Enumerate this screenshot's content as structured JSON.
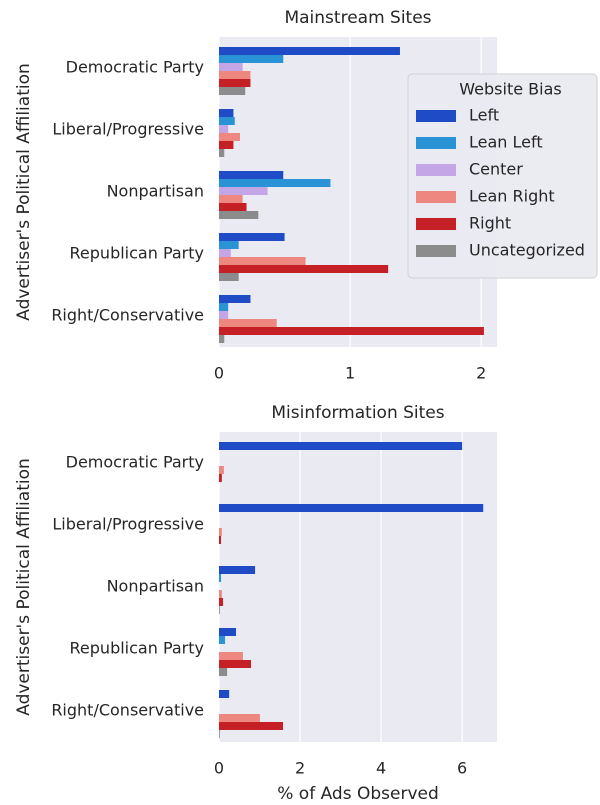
{
  "chart_data": [
    {
      "type": "hbar",
      "title": "Mainstream Sites",
      "ylabel": "Advertiser's Political Affiliation",
      "categories": [
        "Democratic Party",
        "Liberal/Progressive",
        "Nonpartisan",
        "Republican Party",
        "Right/Conservative"
      ],
      "series": [
        {
          "name": "Left",
          "color": "#1f4cc6",
          "values": [
            1.38,
            0.11,
            0.49,
            0.5,
            0.24
          ]
        },
        {
          "name": "Lean Left",
          "color": "#2a93d6",
          "values": [
            0.49,
            0.12,
            0.85,
            0.15,
            0.07
          ]
        },
        {
          "name": "Center",
          "color": "#c4a5e6",
          "values": [
            0.18,
            0.07,
            0.37,
            0.09,
            0.07
          ]
        },
        {
          "name": "Lean Right",
          "color": "#ee8780",
          "values": [
            0.24,
            0.16,
            0.18,
            0.66,
            0.44
          ]
        },
        {
          "name": "Right",
          "color": "#c52026",
          "values": [
            0.24,
            0.11,
            0.21,
            1.29,
            2.02
          ]
        },
        {
          "name": "Uncategorized",
          "color": "#8c8c8c",
          "values": [
            0.2,
            0.04,
            0.3,
            0.15,
            0.04
          ]
        }
      ],
      "xlim": [
        0,
        2.12
      ],
      "xticks": [
        0,
        1,
        2
      ],
      "grid": true,
      "legend": "center right",
      "legend_title": "Website Bias"
    },
    {
      "type": "hbar",
      "title": "Misinformation Sites",
      "ylabel": "Advertiser's Political Affiliation",
      "xlabel": "% of Ads Observed",
      "categories": [
        "Democratic Party",
        "Liberal/Progressive",
        "Nonpartisan",
        "Republican Party",
        "Right/Conservative"
      ],
      "series": [
        {
          "color": "#1f4cc6",
          "values": [
            6.0,
            6.52,
            0.89,
            0.42,
            0.25
          ]
        },
        {
          "color": "#2a93d6",
          "values": [
            0,
            0,
            0.05,
            0.15,
            0
          ]
        },
        {
          "color": "#c4a5e6",
          "values": [
            0,
            0,
            0,
            0,
            0
          ]
        },
        {
          "color": "#ee8780",
          "values": [
            0.12,
            0.07,
            0.07,
            0.59,
            1.01
          ]
        },
        {
          "color": "#c52026",
          "values": [
            0.07,
            0.05,
            0.1,
            0.79,
            1.58
          ]
        },
        {
          "color": "#8c8c8c",
          "values": [
            0,
            0,
            0.02,
            0.2,
            0.02
          ]
        }
      ],
      "xlim": [
        0,
        6.86
      ],
      "xticks": [
        0,
        2,
        4,
        6
      ],
      "grid": true
    }
  ]
}
